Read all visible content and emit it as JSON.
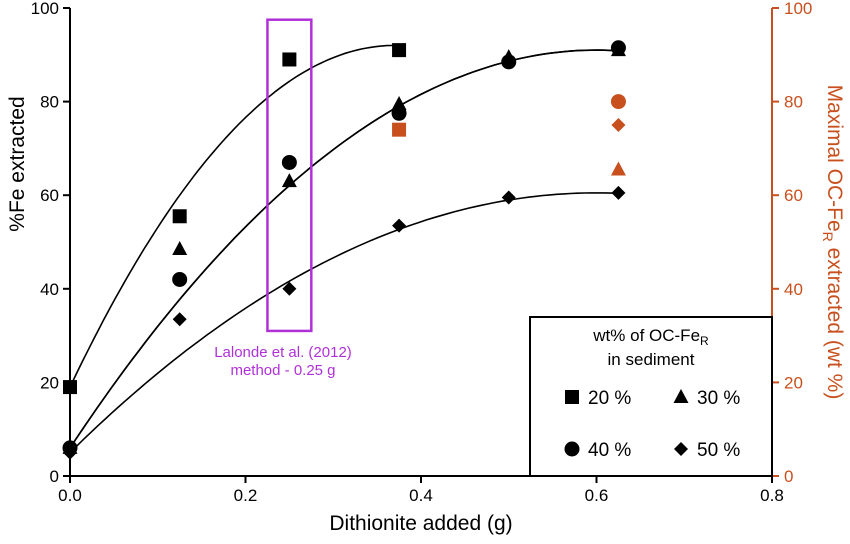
{
  "chart_data": {
    "type": "scatter",
    "xlabel": "Dithionite added (g)",
    "ylabel": "%Fe extracted",
    "y2label": {
      "main": "Maximal OC-Fe",
      "sub": "R",
      "tail": " extracted (wt %)"
    },
    "xlim": [
      0,
      0.8
    ],
    "ylim": [
      0,
      100
    ],
    "y2lim": [
      0,
      100
    ],
    "xticks": [
      "0.0",
      "0.2",
      "0.4",
      "0.6",
      "0.8"
    ],
    "yticks": [
      "0",
      "20",
      "40",
      "60",
      "80",
      "100"
    ],
    "y2ticks": [
      "0",
      "20",
      "40",
      "60",
      "80",
      "100"
    ],
    "grid": false,
    "legend_placement": "bottom-right",
    "legend_title": {
      "line1": "wt% of OC-Fe",
      "sub": "R",
      "line2": "in sediment"
    },
    "colors": {
      "primary": "#000000",
      "secondary_axis": "#c8501e",
      "highlight": "#b030d8"
    },
    "series": [
      {
        "name": "20 %",
        "marker": "square",
        "x": [
          0,
          0.125,
          0.25,
          0.375
        ],
        "y": [
          19,
          55.5,
          89,
          91
        ],
        "max_oc_fer": {
          "x": 0.375,
          "y": 74
        }
      },
      {
        "name": "30 %",
        "marker": "triangle",
        "x": [
          0,
          0.125,
          0.25,
          0.375,
          0.5,
          0.625
        ],
        "y": [
          6,
          48.5,
          63,
          79.5,
          89.5,
          91
        ],
        "max_oc_fer": {
          "x": 0.625,
          "y": 65.5
        }
      },
      {
        "name": "40 %",
        "marker": "circle",
        "x": [
          0,
          0.125,
          0.25,
          0.375,
          0.5,
          0.625
        ],
        "y": [
          6,
          42,
          67,
          77.5,
          88.5,
          91.5
        ],
        "max_oc_fer": {
          "x": 0.625,
          "y": 80
        }
      },
      {
        "name": "50 %",
        "marker": "diamond",
        "x": [
          0,
          0.125,
          0.25,
          0.375,
          0.5,
          0.625
        ],
        "y": [
          5,
          33.5,
          40,
          53.5,
          59.5,
          60.5
        ],
        "max_oc_fer": {
          "x": 0.625,
          "y": 75
        }
      }
    ],
    "fit_curves": [
      {
        "series": "20 %",
        "x_range": [
          0,
          0.375
        ],
        "peak": [
          0.37,
          92
        ]
      },
      {
        "series": "30 %",
        "x_range": [
          0,
          0.625
        ],
        "peak": [
          0.6,
          91
        ]
      },
      {
        "series": "40 %",
        "x_range": [
          0,
          0.625
        ],
        "peak": [
          0.6,
          91
        ]
      },
      {
        "series": "50 %",
        "x_range": [
          0,
          0.625
        ],
        "peak": [
          0.6,
          60.5
        ]
      }
    ],
    "annotation": {
      "x_range": [
        0.225,
        0.275
      ],
      "y_range": [
        31,
        97.5
      ],
      "text_line1": "Lalonde et al. (2012)",
      "text_line2": "method - 0.25 g"
    }
  }
}
